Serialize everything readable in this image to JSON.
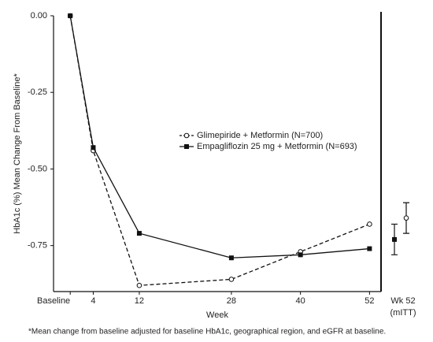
{
  "chart_data": {
    "type": "line",
    "y_label": "HbA1c (%) Mean Change From Baseline*",
    "x_label": "Week",
    "footnote": "*Mean change from baseline adjusted for baseline HbA1c, geographical region, and eGFR at baseline.",
    "x": [
      0,
      4,
      12,
      28,
      40,
      52
    ],
    "xticks": [
      {
        "value": 0,
        "label": "Baseline"
      },
      4,
      12,
      28,
      40,
      52
    ],
    "xlim": [
      -2.9,
      54
    ],
    "ylim": [
      -0.9,
      0
    ],
    "yticks": [
      {
        "value": 0,
        "label": "0.00"
      },
      -0.25,
      {
        "value": -0.5,
        "label": "-0.50"
      },
      -0.75
    ],
    "mitt_labels": [
      "Wk 52",
      "(mITT)"
    ],
    "series": [
      {
        "name": "Glimepiride + Metformin (N=700)",
        "color": "#111111",
        "marker": "circle-open",
        "dashed": true,
        "values": [
          0,
          -0.44,
          -0.88,
          -0.86,
          -0.77,
          -0.68
        ],
        "mitt_value": -0.66,
        "mitt_error": 0.05
      },
      {
        "name": "Empagliflozin 25 mg + Metformin (N=693)",
        "color": "#111111",
        "marker": "square",
        "dashed": false,
        "values": [
          0,
          -0.43,
          -0.71,
          -0.79,
          -0.78,
          -0.76
        ],
        "mitt_value": -0.73,
        "mitt_error": 0.05
      }
    ]
  }
}
